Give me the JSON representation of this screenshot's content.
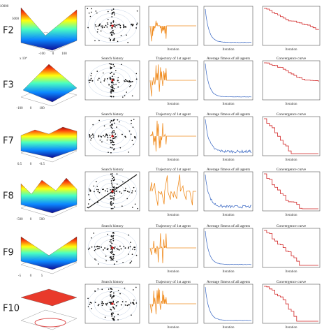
{
  "panel_titles": [
    "Search history",
    "Trajectory of 1st agent",
    "Average fitness of all agents",
    "Convergence curve"
  ],
  "x_label": "Iteration",
  "rows": [
    {
      "label": "F2",
      "surface_ticks": [
        "10000",
        "5000",
        "-100",
        "0",
        "100"
      ]
    },
    {
      "label": "F3",
      "exponent": "x 10⁴",
      "surface_ticks": [
        "-100",
        "0",
        "100"
      ],
      "show_titles": true
    },
    {
      "label": "F7",
      "surface_ticks": [
        "0.5",
        "0",
        "-0.5"
      ],
      "show_titles": true
    },
    {
      "label": "F8",
      "surface_ticks": [
        "-500",
        "0",
        "500"
      ],
      "show_titles": true
    },
    {
      "label": "F9",
      "surface_ticks": [
        "-5",
        "0",
        "5"
      ],
      "show_titles": true
    },
    {
      "label": "F10",
      "show_titles": true
    }
  ]
}
